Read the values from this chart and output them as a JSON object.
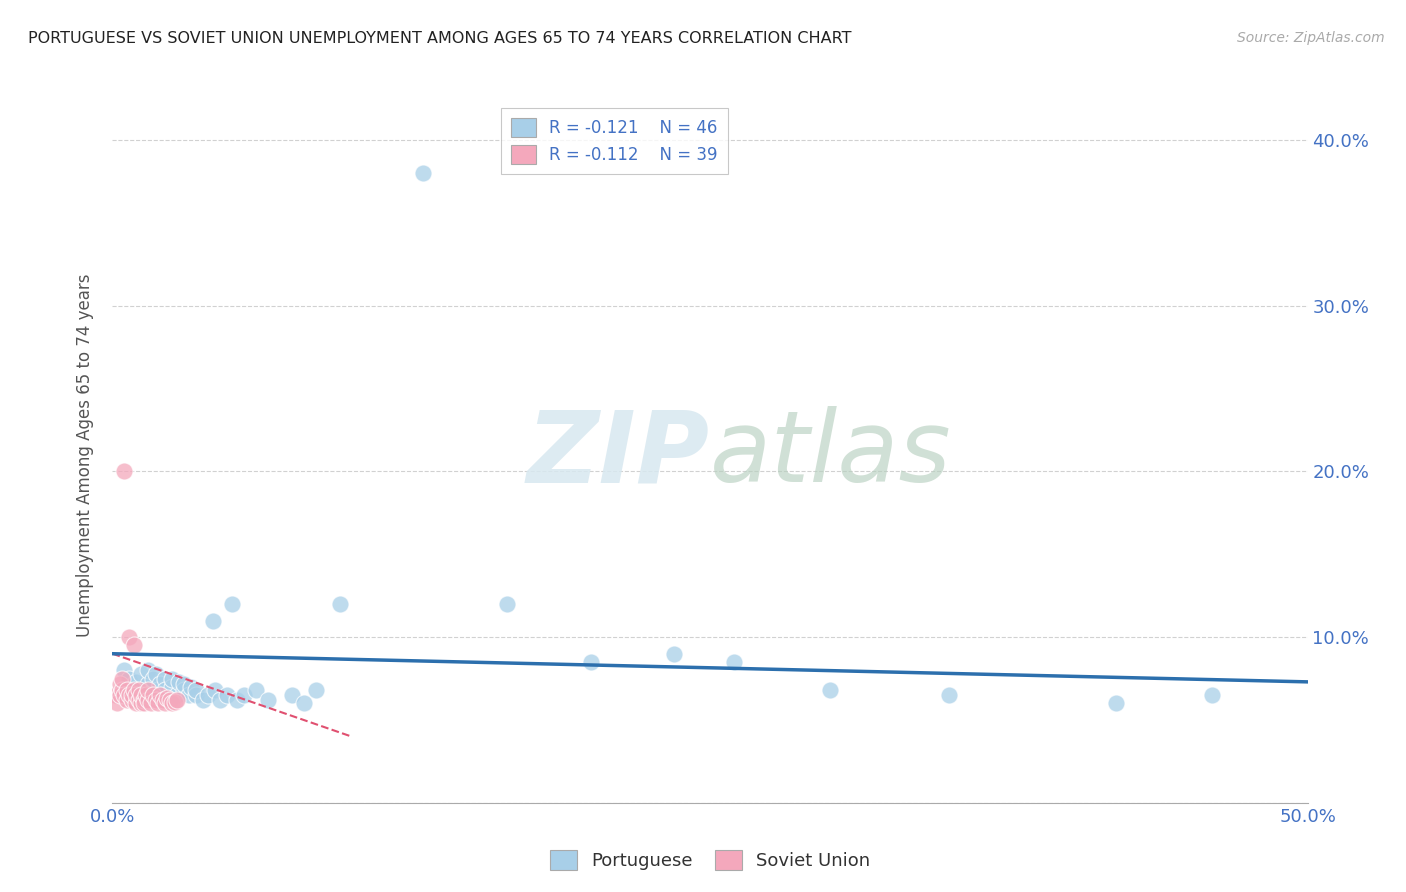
{
  "title": "PORTUGUESE VS SOVIET UNION UNEMPLOYMENT AMONG AGES 65 TO 74 YEARS CORRELATION CHART",
  "source": "Source: ZipAtlas.com",
  "ylabel": "Unemployment Among Ages 65 to 74 years",
  "xlim": [
    0.0,
    0.5
  ],
  "ylim": [
    0.0,
    0.42
  ],
  "xticks": [
    0.0,
    0.05,
    0.1,
    0.15,
    0.2,
    0.25,
    0.3,
    0.35,
    0.4,
    0.45,
    0.5
  ],
  "yticks": [
    0.0,
    0.1,
    0.2,
    0.3,
    0.4
  ],
  "watermark_zip": "ZIP",
  "watermark_atlas": "atlas",
  "legend_r1": "R = -0.121",
  "legend_n1": "N = 46",
  "legend_r2": "R = -0.112",
  "legend_n2": "N = 39",
  "blue_color": "#a8cfe8",
  "pink_color": "#f4a8bc",
  "line_color": "#2c6fad",
  "pink_line_color": "#e05070",
  "portuguese_x": [
    0.005,
    0.007,
    0.01,
    0.012,
    0.015,
    0.015,
    0.017,
    0.018,
    0.019,
    0.02,
    0.022,
    0.022,
    0.025,
    0.025,
    0.027,
    0.028,
    0.03,
    0.03,
    0.032,
    0.033,
    0.035,
    0.035,
    0.038,
    0.04,
    0.042,
    0.043,
    0.045,
    0.048,
    0.05,
    0.052,
    0.055,
    0.06,
    0.065,
    0.075,
    0.08,
    0.085,
    0.095,
    0.13,
    0.165,
    0.2,
    0.235,
    0.26,
    0.3,
    0.35,
    0.42,
    0.46
  ],
  "portuguese_y": [
    0.08,
    0.075,
    0.073,
    0.078,
    0.072,
    0.08,
    0.075,
    0.078,
    0.068,
    0.072,
    0.075,
    0.068,
    0.07,
    0.075,
    0.065,
    0.073,
    0.068,
    0.072,
    0.065,
    0.07,
    0.065,
    0.068,
    0.062,
    0.065,
    0.11,
    0.068,
    0.062,
    0.065,
    0.12,
    0.062,
    0.065,
    0.068,
    0.062,
    0.065,
    0.06,
    0.068,
    0.12,
    0.38,
    0.12,
    0.085,
    0.09,
    0.085,
    0.068,
    0.065,
    0.06,
    0.065
  ],
  "soviet_x": [
    0.001,
    0.002,
    0.003,
    0.003,
    0.004,
    0.004,
    0.005,
    0.005,
    0.006,
    0.006,
    0.007,
    0.007,
    0.008,
    0.008,
    0.009,
    0.009,
    0.01,
    0.01,
    0.011,
    0.011,
    0.012,
    0.012,
    0.013,
    0.013,
    0.014,
    0.015,
    0.015,
    0.016,
    0.017,
    0.018,
    0.019,
    0.02,
    0.021,
    0.022,
    0.023,
    0.024,
    0.025,
    0.026,
    0.027
  ],
  "soviet_y": [
    0.065,
    0.06,
    0.072,
    0.065,
    0.068,
    0.075,
    0.065,
    0.2,
    0.062,
    0.068,
    0.065,
    0.1,
    0.062,
    0.065,
    0.068,
    0.095,
    0.06,
    0.065,
    0.062,
    0.068,
    0.06,
    0.065,
    0.062,
    0.06,
    0.065,
    0.062,
    0.068,
    0.06,
    0.065,
    0.062,
    0.06,
    0.065,
    0.062,
    0.06,
    0.063,
    0.062,
    0.06,
    0.061,
    0.062
  ],
  "blue_line_x0": 0.0,
  "blue_line_y0": 0.09,
  "blue_line_x1": 0.5,
  "blue_line_y1": 0.073,
  "pink_line_x0": 0.0,
  "pink_line_y0": 0.09,
  "pink_line_x1": 0.1,
  "pink_line_y1": 0.04
}
